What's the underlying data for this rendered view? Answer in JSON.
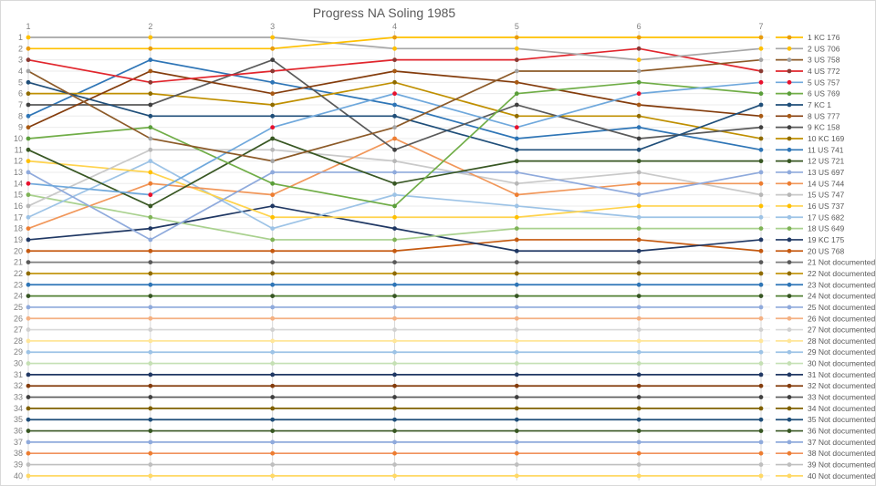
{
  "title": "Progress NA Soling 1985",
  "chart_data": {
    "type": "line",
    "title": "Progress NA Soling 1985",
    "x_axis": {
      "position": "top",
      "label": "",
      "ticks": [
        "1",
        "2",
        "3",
        "4",
        "5",
        "6",
        "7"
      ]
    },
    "y_axis": {
      "label": "",
      "min": 1,
      "max": 40,
      "inverted": true,
      "tick_step": 1,
      "ticks": [
        1,
        2,
        3,
        4,
        5,
        6,
        7,
        8,
        9,
        10,
        11,
        12,
        13,
        14,
        15,
        16,
        17,
        18,
        19,
        20,
        21,
        22,
        23,
        24,
        25,
        26,
        27,
        28,
        29,
        30,
        31,
        32,
        33,
        34,
        35,
        36,
        37,
        38,
        39,
        40
      ]
    },
    "grid": true,
    "legend_position": "right",
    "series": [
      {
        "rank": 1,
        "label": "1 KC 176",
        "line": "#FFC000",
        "marker": "#E89C0E",
        "positions": [
          2,
          2,
          2,
          1,
          1,
          1,
          1
        ]
      },
      {
        "rank": 2,
        "label": "2 US 706",
        "line": "#A6A6A6",
        "marker": "#FFC000",
        "positions": [
          1,
          1,
          1,
          2,
          2,
          3,
          2
        ]
      },
      {
        "rank": 3,
        "label": "3 US 758",
        "line": "#8C5A28",
        "marker": "#A5A5A5",
        "positions": [
          4,
          10,
          12,
          9,
          4,
          4,
          3
        ]
      },
      {
        "rank": 4,
        "label": "4 US 772",
        "line": "#E1262D",
        "marker": "#8B3A32",
        "positions": [
          3,
          5,
          4,
          3,
          3,
          2,
          4
        ]
      },
      {
        "rank": 5,
        "label": "5 US 757",
        "line": "#6FA8DC",
        "marker": "#E8112D",
        "positions": [
          14,
          15,
          9,
          6,
          9,
          6,
          5
        ]
      },
      {
        "rank": 6,
        "label": "6 US 769",
        "line": "#70AD47",
        "marker": "#5A9E3A",
        "positions": [
          10,
          9,
          14,
          16,
          6,
          5,
          6
        ]
      },
      {
        "rank": 7,
        "label": "7 KC 1",
        "line": "#1F4E79",
        "marker": "#1F4E79",
        "positions": [
          5,
          8,
          8,
          8,
          11,
          11,
          7
        ]
      },
      {
        "rank": 8,
        "label": "8 US 777",
        "line": "#843C0C",
        "marker": "#A85A14",
        "positions": [
          9,
          4,
          6,
          4,
          5,
          7,
          8
        ]
      },
      {
        "rank": 9,
        "label": "9 KC 158",
        "line": "#595959",
        "marker": "#404040",
        "positions": [
          7,
          7,
          3,
          11,
          7,
          10,
          9
        ]
      },
      {
        "rank": 10,
        "label": "10 KC 169",
        "line": "#BF8F00",
        "marker": "#8F6B00",
        "positions": [
          6,
          6,
          7,
          5,
          8,
          8,
          10
        ]
      },
      {
        "rank": 11,
        "label": "11 US 741",
        "line": "#2E75B6",
        "marker": "#2E75B6",
        "positions": [
          8,
          3,
          5,
          7,
          10,
          9,
          11
        ]
      },
      {
        "rank": 12,
        "label": "12 US 721",
        "line": "#385723",
        "marker": "#385723",
        "positions": [
          11,
          16,
          10,
          14,
          12,
          12,
          12
        ]
      },
      {
        "rank": 13,
        "label": "13 US 697",
        "line": "#8FAADC",
        "marker": "#8FAADC",
        "positions": [
          13,
          19,
          13,
          13,
          13,
          15,
          13
        ]
      },
      {
        "rank": 14,
        "label": "14 US 744",
        "line": "#F1975A",
        "marker": "#ED7D31",
        "positions": [
          18,
          14,
          15,
          10,
          15,
          14,
          14
        ]
      },
      {
        "rank": 15,
        "label": "15 US 747",
        "line": "#C9C9C9",
        "marker": "#B7B7B7",
        "positions": [
          16,
          11,
          11,
          12,
          14,
          13,
          15
        ]
      },
      {
        "rank": 16,
        "label": "16 US 737",
        "line": "#FFD34D",
        "marker": "#FFC000",
        "positions": [
          12,
          13,
          17,
          17,
          17,
          16,
          16
        ]
      },
      {
        "rank": 17,
        "label": "17 US 682",
        "line": "#9DC3E6",
        "marker": "#9DC3E6",
        "positions": [
          17,
          12,
          18,
          15,
          16,
          17,
          17
        ]
      },
      {
        "rank": 18,
        "label": "18 US 649",
        "line": "#A9D18E",
        "marker": "#7FB356",
        "positions": [
          15,
          17,
          19,
          19,
          18,
          18,
          18
        ]
      },
      {
        "rank": 19,
        "label": "19 KC 175",
        "line": "#203864",
        "marker": "#203864",
        "positions": [
          19,
          18,
          16,
          18,
          20,
          20,
          19
        ]
      },
      {
        "rank": 20,
        "label": "20 US 768",
        "line": "#C55A11",
        "marker": "#C55A11",
        "positions": [
          20,
          20,
          20,
          20,
          19,
          19,
          20
        ]
      },
      {
        "rank": 21,
        "label": "21 Not documented",
        "line": "#7F7F7F",
        "marker": "#595959",
        "positions": [
          21,
          21,
          21,
          21,
          21,
          21,
          21
        ]
      },
      {
        "rank": 22,
        "label": "22 Not documented",
        "line": "#BF8F00",
        "marker": "#8F6B00",
        "positions": [
          22,
          22,
          22,
          22,
          22,
          22,
          22
        ]
      },
      {
        "rank": 23,
        "label": "23 Not documented",
        "line": "#2E75B6",
        "marker": "#2E75B6",
        "positions": [
          23,
          23,
          23,
          23,
          23,
          23,
          23
        ]
      },
      {
        "rank": 24,
        "label": "24 Not documented",
        "line": "#538135",
        "marker": "#375623",
        "positions": [
          24,
          24,
          24,
          24,
          24,
          24,
          24
        ]
      },
      {
        "rank": 25,
        "label": "25 Not documented",
        "line": "#8FAADC",
        "marker": "#8FAADC",
        "positions": [
          25,
          25,
          25,
          25,
          25,
          25,
          25
        ]
      },
      {
        "rank": 26,
        "label": "26 Not documented",
        "line": "#F4B183",
        "marker": "#F4B183",
        "positions": [
          26,
          26,
          26,
          26,
          26,
          26,
          26
        ]
      },
      {
        "rank": 27,
        "label": "27 Not documented",
        "line": "#D9D9D9",
        "marker": "#D0D0D0",
        "positions": [
          27,
          27,
          27,
          27,
          27,
          27,
          27
        ]
      },
      {
        "rank": 28,
        "label": "28 Not documented",
        "line": "#FFE699",
        "marker": "#FFE699",
        "positions": [
          28,
          28,
          28,
          28,
          28,
          28,
          28
        ]
      },
      {
        "rank": 29,
        "label": "29 Not documented",
        "line": "#9DC3E6",
        "marker": "#9DC3E6",
        "positions": [
          29,
          29,
          29,
          29,
          29,
          29,
          29
        ]
      },
      {
        "rank": 30,
        "label": "30 Not documented",
        "line": "#C5E0B4",
        "marker": "#C5E0B4",
        "positions": [
          30,
          30,
          30,
          30,
          30,
          30,
          30
        ]
      },
      {
        "rank": 31,
        "label": "31 Not documented",
        "line": "#203864",
        "marker": "#203864",
        "positions": [
          31,
          31,
          31,
          31,
          31,
          31,
          31
        ]
      },
      {
        "rank": 32,
        "label": "32 Not documented",
        "line": "#843C0C",
        "marker": "#843C0C",
        "positions": [
          32,
          32,
          32,
          32,
          32,
          32,
          32
        ]
      },
      {
        "rank": 33,
        "label": "33 Not documented",
        "line": "#595959",
        "marker": "#404040",
        "positions": [
          33,
          33,
          33,
          33,
          33,
          33,
          33
        ]
      },
      {
        "rank": 34,
        "label": "34 Not documented",
        "line": "#7F6000",
        "marker": "#7F6000",
        "positions": [
          34,
          34,
          34,
          34,
          34,
          34,
          34
        ]
      },
      {
        "rank": 35,
        "label": "35 Not documented",
        "line": "#1F4E79",
        "marker": "#1F4E79",
        "positions": [
          35,
          35,
          35,
          35,
          35,
          35,
          35
        ]
      },
      {
        "rank": 36,
        "label": "36 Not documented",
        "line": "#385723",
        "marker": "#385723",
        "positions": [
          36,
          36,
          36,
          36,
          36,
          36,
          36
        ]
      },
      {
        "rank": 37,
        "label": "37 Not documented",
        "line": "#8FAADC",
        "marker": "#8FAADC",
        "positions": [
          37,
          37,
          37,
          37,
          37,
          37,
          37
        ]
      },
      {
        "rank": 38,
        "label": "38 Not documented",
        "line": "#F0925C",
        "marker": "#ED7D31",
        "positions": [
          38,
          38,
          38,
          38,
          38,
          38,
          38
        ]
      },
      {
        "rank": 39,
        "label": "39 Not documented",
        "line": "#BFBFBF",
        "marker": "#BFBFBF",
        "positions": [
          39,
          39,
          39,
          39,
          39,
          39,
          39
        ]
      },
      {
        "rank": 40,
        "label": "40 Not documented",
        "line": "#FFD966",
        "marker": "#FFD966",
        "positions": [
          40,
          40,
          40,
          40,
          40,
          40,
          40
        ]
      }
    ]
  },
  "colors": {
    "title_text": "#595959",
    "axis_text": "#808080",
    "legend_text": "#595959",
    "grid_h": "#EBEBEB",
    "grid_v": "#D9D9D9",
    "background": "#FFFFFF"
  }
}
